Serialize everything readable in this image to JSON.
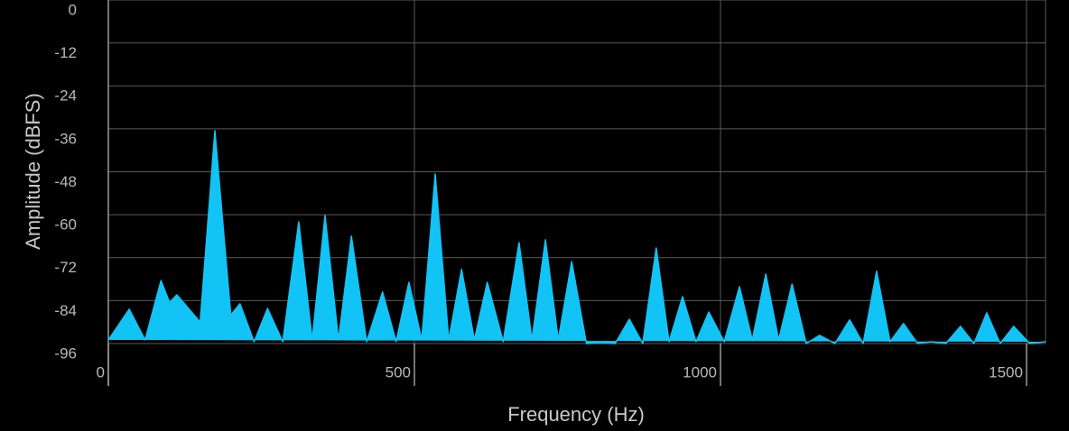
{
  "chart_data": {
    "type": "area",
    "x_label": "Frequency (Hz)",
    "y_label": "Amplitude (dBFS)",
    "x": [
      0,
      34,
      60,
      86,
      100,
      112,
      150,
      174,
      200,
      215,
      238,
      260,
      285,
      311,
      333,
      354,
      376,
      397,
      422,
      448,
      470,
      491,
      512,
      534,
      556,
      577,
      598,
      619,
      645,
      671,
      692,
      714,
      735,
      757,
      781,
      805,
      828,
      851,
      873,
      895,
      916,
      938,
      960,
      981,
      1006,
      1031,
      1052,
      1074,
      1095,
      1117,
      1140,
      1162,
      1187,
      1211,
      1233,
      1255,
      1277,
      1299,
      1322,
      1344,
      1368,
      1392,
      1414,
      1435,
      1457,
      1479,
      1505,
      1531
    ],
    "values": [
      -95,
      -86.4,
      -95,
      -78.4,
      -84.5,
      -82.4,
      -90,
      -36.5,
      -88,
      -84.9,
      -95.5,
      -86.2,
      -95.5,
      -62,
      -95,
      -60.2,
      -95,
      -66,
      -95.5,
      -81.6,
      -95.5,
      -78.9,
      -95,
      -48.6,
      -95,
      -75.3,
      -95,
      -78.9,
      -95.5,
      -67.8,
      -95,
      -67,
      -95,
      -73.1,
      -96,
      -95.8,
      -96,
      -89.2,
      -96,
      -69.3,
      -95.5,
      -82.9,
      -95.5,
      -87.2,
      -95.5,
      -80.1,
      -95,
      -76.6,
      -95,
      -79.4,
      -96,
      -93.7,
      -96,
      -89.4,
      -96,
      -75.8,
      -95.5,
      -90.4,
      -96,
      -95.5,
      -96,
      -91.2,
      -96,
      -87.4,
      -96,
      -91.2,
      -96,
      -95.5
    ],
    "color": "#12c3f5",
    "xlim": [
      0,
      1531
    ],
    "ylim": [
      -96,
      0
    ],
    "xticks": [
      0,
      500,
      1000,
      1500
    ],
    "yticks": [
      0,
      -12,
      -24,
      -36,
      -48,
      -60,
      -72,
      -84,
      -96
    ],
    "grid": true
  }
}
